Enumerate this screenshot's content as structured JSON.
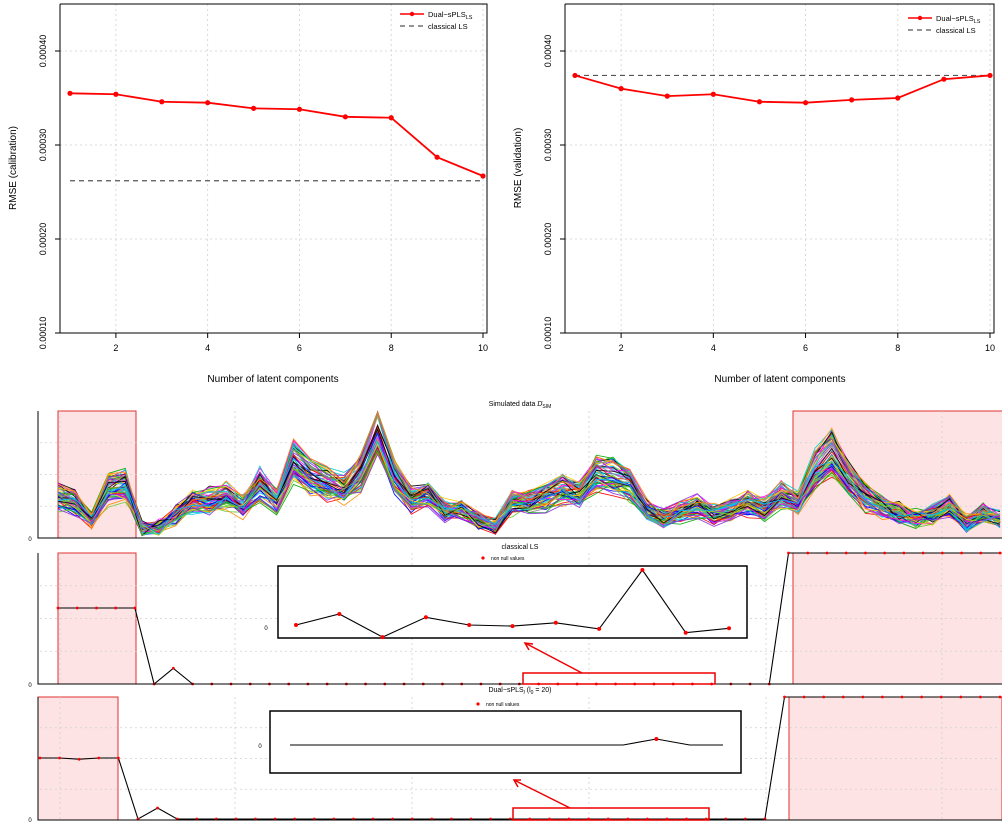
{
  "chart_data": [
    {
      "type": "line",
      "ylabel": "RMSE (calibration)",
      "xlabel": "Number of latent components",
      "x": [
        1,
        2,
        3,
        4,
        5,
        6,
        7,
        8,
        9,
        10
      ],
      "xticks": [
        "2",
        "4",
        "6",
        "8",
        "10"
      ],
      "yticks": [
        "0.00010",
        "0.00020",
        "0.00030",
        "0.00040"
      ],
      "ylim": [
        0.0001,
        0.00045
      ],
      "series": [
        {
          "name": "Dual−sPLS",
          "name_sub": "LS",
          "color": "#ff0000",
          "values": [
            0.000355,
            0.000354,
            0.000346,
            0.000345,
            0.000339,
            0.000338,
            0.00033,
            0.000329,
            0.000287,
            0.000267
          ]
        },
        {
          "name": "classical LS",
          "color": "#555555",
          "constant": 0.000262
        }
      ],
      "legend": "top-right"
    },
    {
      "type": "line",
      "ylabel": "RMSE (validation)",
      "xlabel": "Number of latent components",
      "x": [
        1,
        2,
        3,
        4,
        5,
        6,
        7,
        8,
        9,
        10
      ],
      "xticks": [
        "2",
        "4",
        "6",
        "8",
        "10"
      ],
      "yticks": [
        "0.00010",
        "0.00020",
        "0.00030",
        "0.00040"
      ],
      "ylim": [
        0.0001,
        0.00045
      ],
      "series": [
        {
          "name": "Dual−sPLS",
          "name_sub": "LS",
          "color": "#ff0000",
          "values": [
            0.000374,
            0.00036,
            0.000352,
            0.000354,
            0.000346,
            0.000345,
            0.000348,
            0.00035,
            0.00037,
            0.000374
          ]
        },
        {
          "name": "classical LS",
          "color": "#555555",
          "constant": 0.000374
        }
      ],
      "legend": "top-right"
    },
    {
      "type": "line",
      "title": "Simulated data ",
      "title_symbol": "D",
      "title_sub": "SIM",
      "ytick": "0",
      "series_count": 60,
      "profile": [
        0.45,
        0.4,
        0.18,
        0.55,
        0.6,
        0.08,
        0.1,
        0.25,
        0.4,
        0.42,
        0.48,
        0.35,
        0.6,
        0.4,
        0.88,
        0.7,
        0.62,
        0.55,
        0.75,
        1.25,
        0.7,
        0.42,
        0.48,
        0.3,
        0.3,
        0.18,
        0.12,
        0.38,
        0.4,
        0.45,
        0.55,
        0.48,
        0.72,
        0.7,
        0.6,
        0.3,
        0.2,
        0.28,
        0.35,
        0.25,
        0.3,
        0.38,
        0.32,
        0.48,
        0.4,
        0.78,
        0.98,
        0.68,
        0.45,
        0.35,
        0.28,
        0.2,
        0.24,
        0.35,
        0.15,
        0.26,
        0.2
      ]
    },
    {
      "type": "line",
      "title": "classical LS",
      "legend_label": "non null values",
      "ytick": "0",
      "inset_ytick": "0",
      "values": [
        0.58,
        0.58,
        0.58,
        0.58,
        0.58,
        0.0,
        0.12,
        0.0,
        0.0,
        0.0,
        0.0,
        0.0,
        0.0,
        0.0,
        0.0,
        0.0,
        0.0,
        0.0,
        0.0,
        0.0,
        0.0,
        0.0,
        0.0,
        0.0,
        0.0,
        0.0,
        0.0,
        0.0,
        0.0,
        0.0,
        0.0,
        0.0,
        0.0,
        0.0,
        0.0,
        0.0,
        0.0,
        0.0,
        1.0,
        1.0,
        1.0,
        1.0,
        1.0,
        1.0,
        1.0,
        1.0,
        1.0,
        1.0,
        1.0,
        1.0
      ],
      "inset_values": [
        0.0,
        0.2,
        -0.22,
        0.14,
        0.0,
        -0.02,
        0.04,
        -0.07,
        1.0,
        -0.14,
        -0.06
      ]
    },
    {
      "type": "line",
      "title": "Dual−sPLS",
      "title_sub": "l",
      "title_paren": "(l",
      "title_paren_sub": "0",
      "title_paren_rest": " = 20)",
      "legend_label": "non null values",
      "ytick": "0",
      "inset_ytick": "0",
      "values": [
        0.5,
        0.5,
        0.49,
        0.5,
        0.5,
        0.0,
        0.09,
        0.0,
        0.0,
        0.0,
        0.0,
        0.0,
        0.0,
        0.0,
        0.0,
        0.0,
        0.0,
        0.0,
        0.0,
        0.0,
        0.0,
        0.0,
        0.0,
        0.0,
        0.0,
        0.0,
        0.0,
        0.0,
        0.0,
        0.0,
        0.0,
        0.0,
        0.0,
        0.0,
        0.0,
        0.0,
        0.0,
        0.0,
        1.0,
        1.0,
        1.0,
        1.0,
        1.0,
        1.0,
        1.0,
        1.0,
        1.0,
        1.0,
        1.0,
        1.0
      ],
      "inset_values": [
        0.0,
        0.0,
        0.0,
        0.0,
        0.0,
        0.0,
        0.0,
        0.0,
        0.0,
        0.0,
        0.0,
        0.12,
        0.0,
        0.0
      ]
    }
  ],
  "palette": [
    "#ff0000",
    "#00aa00",
    "#0000ff",
    "#00cccc",
    "#ff00ff",
    "#ffcc00",
    "#888888",
    "#000000",
    "#ff8800",
    "#66cc33",
    "#8a2be2",
    "#00bfff"
  ]
}
